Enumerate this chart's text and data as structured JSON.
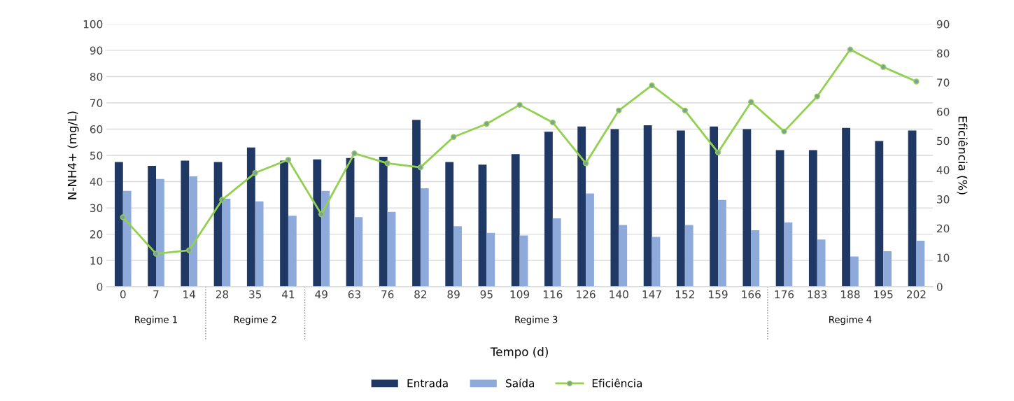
{
  "chart_data": {
    "type": "bar",
    "categories": [
      "0",
      "7",
      "14",
      "28",
      "35",
      "41",
      "49",
      "63",
      "76",
      "82",
      "89",
      "95",
      "109",
      "116",
      "126",
      "140",
      "147",
      "152",
      "159",
      "166",
      "176",
      "183",
      "188",
      "195",
      "202"
    ],
    "series": [
      {
        "name": "Entrada",
        "color": "#1f3864",
        "values": [
          47.5,
          46,
          48,
          47.5,
          53,
          48,
          48.5,
          49,
          49.5,
          63.5,
          47.5,
          46.5,
          50.5,
          59,
          61,
          60,
          61.5,
          59.5,
          61,
          60,
          52,
          52,
          60.5,
          55.5,
          59.5
        ]
      },
      {
        "name": "Saída",
        "color": "#8eaadb",
        "values": [
          36.5,
          41,
          42,
          33.5,
          32.5,
          27,
          36.5,
          26.5,
          28.5,
          37.5,
          23,
          20.5,
          19.5,
          26,
          35.5,
          23.5,
          19,
          23.5,
          33,
          21.5,
          24.5,
          18,
          11.5,
          13.5,
          17.5
        ]
      },
      {
        "name": "Eficiência",
        "type": "line",
        "axis": "y2",
        "color": "#92d050",
        "marker": "circle",
        "values": [
          23.8,
          11.3,
          12.5,
          29.8,
          39,
          43.5,
          24.8,
          45.7,
          42.3,
          40.9,
          51.3,
          55.8,
          62.3,
          56.3,
          42.3,
          60.4,
          69,
          60.4,
          46,
          63.3,
          53.2,
          65.2,
          81.3,
          75.3,
          70.3
        ]
      }
    ],
    "xlabel": "Tempo (d)",
    "ylabel": "N-NH4+ (mg/L)",
    "y2label": "Eficiência (%)",
    "ylim": [
      0,
      100
    ],
    "yticks": [
      0,
      10,
      20,
      30,
      40,
      50,
      60,
      70,
      80,
      90,
      100
    ],
    "y2lim": [
      0,
      90
    ],
    "y2ticks": [
      0,
      10,
      20,
      30,
      40,
      50,
      60,
      70,
      80,
      90
    ],
    "annotations": [
      "Regime 1",
      "Regime 2",
      "Regime 3",
      "Regime 4"
    ],
    "grid": "y",
    "legend": "bottom"
  }
}
